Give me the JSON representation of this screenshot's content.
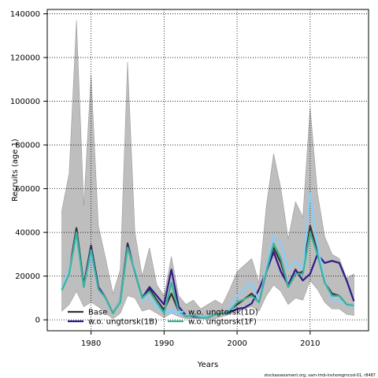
{
  "footer_text": "stockassessment.org, sam-tmb-inshoregmcod-01, r8487",
  "chart_data": {
    "type": "line",
    "title": "",
    "xlabel": "Years",
    "ylabel": "Recruits (age 1)",
    "xlim": [
      1974,
      2018
    ],
    "ylim": [
      -5000,
      142000
    ],
    "x_ticks": [
      1980,
      1990,
      2000,
      2010
    ],
    "y_ticks": [
      0,
      20000,
      40000,
      60000,
      80000,
      100000,
      120000,
      140000
    ],
    "grid": true,
    "legend_position": "bottom-left",
    "x": [
      1976,
      1977,
      1978,
      1979,
      1980,
      1981,
      1982,
      1983,
      1984,
      1985,
      1986,
      1987,
      1988,
      1989,
      1990,
      1991,
      1992,
      1993,
      1994,
      1995,
      1996,
      1997,
      1998,
      1999,
      2000,
      2001,
      2002,
      2003,
      2004,
      2005,
      2006,
      2007,
      2008,
      2009,
      2010,
      2011,
      2012,
      2013,
      2014,
      2015,
      2016
    ],
    "confidence_band": {
      "series": "Base",
      "color": "#bebebe",
      "lower": [
        4000,
        7000,
        13000,
        6000,
        8000,
        6000,
        3000,
        500,
        3000,
        11000,
        10000,
        4000,
        5000,
        3000,
        1000,
        3000,
        1500,
        500,
        500,
        500,
        300,
        500,
        1500,
        2500,
        4000,
        5000,
        6000,
        4000,
        11000,
        16000,
        13000,
        7000,
        10000,
        9000,
        18000,
        14000,
        8000,
        5000,
        5000,
        2500,
        2000
      ],
      "upper": [
        50000,
        67000,
        137000,
        52000,
        112000,
        43000,
        28000,
        12000,
        23000,
        118000,
        40000,
        20000,
        33000,
        16000,
        11000,
        29000,
        11000,
        7000,
        9000,
        5000,
        7000,
        9000,
        7000,
        14000,
        22000,
        25000,
        28000,
        17000,
        52000,
        76000,
        60000,
        37000,
        54000,
        47000,
        97000,
        58000,
        38000,
        30000,
        28000,
        19000,
        21000
      ]
    },
    "series": [
      {
        "name": "Base",
        "color": "#333333",
        "width": 2.2,
        "values": [
          14000,
          22000,
          42000,
          16000,
          34000,
          15000,
          10000,
          3000,
          9000,
          35000,
          22000,
          10000,
          14000,
          9000,
          4500,
          12000,
          4000,
          1500,
          2000,
          1500,
          1500,
          2500,
          3000,
          4500,
          7000,
          9500,
          12000,
          8000,
          22000,
          33000,
          26000,
          15000,
          21000,
          22000,
          43000,
          31000,
          17000,
          12000,
          11000,
          7000,
          7000
        ]
      },
      {
        "name": "w.o. ungtorsk(1B)",
        "color": "#2e1a8a",
        "width": 2.2,
        "values": [
          14000,
          22000,
          40000,
          15000,
          33000,
          15000,
          10000,
          3000,
          9000,
          34000,
          22000,
          10000,
          15000,
          11000,
          7000,
          23000,
          6000,
          2000,
          1500,
          1000,
          1000,
          2500,
          3000,
          3500,
          5000,
          5500,
          7500,
          14000,
          22000,
          31000,
          22000,
          16000,
          23000,
          18000,
          21000,
          30000,
          26000,
          27000,
          26000,
          18000,
          8500
        ]
      },
      {
        "name": "w.o. ungtorsk(1D)",
        "color": "#87cefa",
        "width": 2.2,
        "values": [
          14000,
          23000,
          38000,
          15000,
          30000,
          14000,
          10000,
          3000,
          9000,
          33000,
          23000,
          9000,
          10000,
          6000,
          3000,
          5000,
          3000,
          2000,
          2000,
          1500,
          1500,
          2500,
          3000,
          5000,
          11000,
          14000,
          17000,
          8000,
          24000,
          38000,
          35000,
          23000,
          27000,
          23000,
          58000,
          34000,
          18000,
          9000,
          9000,
          7000,
          7000
        ]
      },
      {
        "name": "w.o. ungtorsk(1F)",
        "color": "#3cb39b",
        "width": 2.2,
        "values": [
          13500,
          21000,
          40000,
          15000,
          32000,
          14000,
          10000,
          3000,
          8000,
          33000,
          22000,
          10000,
          13000,
          8000,
          3000,
          17000,
          4000,
          1500,
          2000,
          1000,
          1000,
          2500,
          3000,
          4000,
          8000,
          9500,
          11000,
          8000,
          22000,
          35000,
          28000,
          15000,
          21000,
          21000,
          40000,
          30000,
          17000,
          11000,
          11000,
          7000,
          6500
        ]
      }
    ]
  }
}
